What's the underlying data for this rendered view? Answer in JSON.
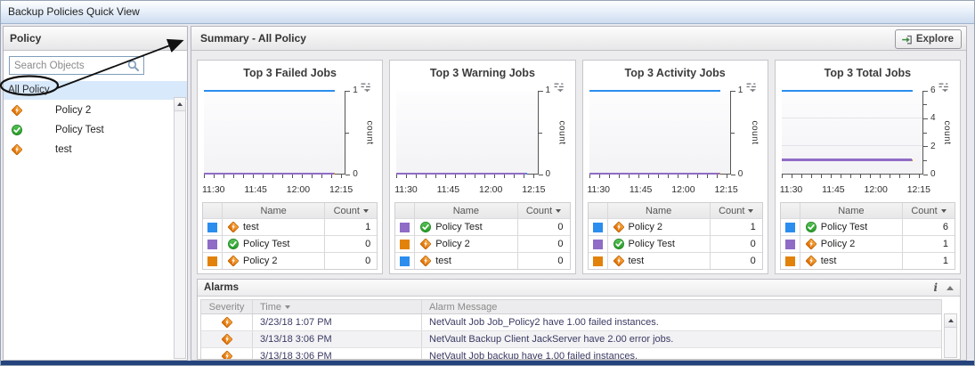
{
  "window": {
    "title": "Backup Policies Quick View"
  },
  "colors": {
    "series_blue": "#2b8dee",
    "series_purple": "#8f6cc6",
    "series_orange": "#e2820a",
    "selected_row_bg": "#d8e9fb",
    "bottom_bar": "#24437c"
  },
  "sidebar": {
    "header": "Policy",
    "search_placeholder": "Search Objects",
    "selected_item": "All Policy",
    "items": [
      {
        "label": "Policy 2",
        "icon": "warning-diamond"
      },
      {
        "label": "Policy Test",
        "icon": "ok-check"
      },
      {
        "label": "test",
        "icon": "warning-diamond"
      }
    ]
  },
  "main": {
    "header": "Summary - All Policy",
    "explore_label": "Explore"
  },
  "panels": [
    {
      "title": "Top 3 Failed Jobs",
      "columns": {
        "name": "Name",
        "count": "Count"
      },
      "rows": [
        {
          "swatch": "#2b8dee",
          "icon": "warning-diamond",
          "name": "test",
          "count": "1"
        },
        {
          "swatch": "#8f6cc6",
          "icon": "ok-check",
          "name": "Policy Test",
          "count": "0"
        },
        {
          "swatch": "#e2820a",
          "icon": "warning-diamond",
          "name": "Policy 2",
          "count": "0"
        }
      ]
    },
    {
      "title": "Top 3 Warning Jobs",
      "columns": {
        "name": "Name",
        "count": "Count"
      },
      "rows": [
        {
          "swatch": "#8f6cc6",
          "icon": "ok-check",
          "name": "Policy Test",
          "count": "0"
        },
        {
          "swatch": "#e2820a",
          "icon": "warning-diamond",
          "name": "Policy 2",
          "count": "0"
        },
        {
          "swatch": "#2b8dee",
          "icon": "warning-diamond",
          "name": "test",
          "count": "0"
        }
      ]
    },
    {
      "title": "Top 3 Activity Jobs",
      "columns": {
        "name": "Name",
        "count": "Count"
      },
      "rows": [
        {
          "swatch": "#2b8dee",
          "icon": "warning-diamond",
          "name": "Policy 2",
          "count": "1"
        },
        {
          "swatch": "#8f6cc6",
          "icon": "ok-check",
          "name": "Policy Test",
          "count": "0"
        },
        {
          "swatch": "#e2820a",
          "icon": "warning-diamond",
          "name": "test",
          "count": "0"
        }
      ]
    },
    {
      "title": "Top 3 Total Jobs",
      "columns": {
        "name": "Name",
        "count": "Count"
      },
      "rows": [
        {
          "swatch": "#2b8dee",
          "icon": "ok-check",
          "name": "Policy Test",
          "count": "6"
        },
        {
          "swatch": "#8f6cc6",
          "icon": "warning-diamond",
          "name": "Policy 2",
          "count": "1"
        },
        {
          "swatch": "#e2820a",
          "icon": "warning-diamond",
          "name": "test",
          "count": "1"
        }
      ]
    }
  ],
  "chart_data": [
    {
      "type": "line",
      "title": "Top 3 Failed Jobs",
      "xlabel": "",
      "ylabel": "count",
      "ylim": [
        0,
        1
      ],
      "x_ticks": [
        "11:30",
        "11:45",
        "12:00",
        "12:15"
      ],
      "y_ticks": [
        0,
        1
      ],
      "y_minor_ticks": [
        0.5
      ],
      "gridlines": [],
      "series": [
        {
          "name": "test",
          "color": "#2b8dee",
          "values": [
            1,
            1,
            1,
            1
          ]
        },
        {
          "name": "Policy Test",
          "color": "#8f6cc6",
          "values": [
            0,
            0,
            0,
            0
          ]
        },
        {
          "name": "Policy 2",
          "color": "#e2820a",
          "values": [
            0,
            0,
            0,
            0
          ]
        }
      ]
    },
    {
      "type": "line",
      "title": "Top 3 Warning Jobs",
      "xlabel": "",
      "ylabel": "count",
      "ylim": [
        0,
        1
      ],
      "x_ticks": [
        "11:30",
        "11:45",
        "12:00",
        "12:15"
      ],
      "y_ticks": [
        0,
        1
      ],
      "y_minor_ticks": [
        0.5
      ],
      "gridlines": [],
      "series": [
        {
          "name": "Policy Test",
          "color": "#8f6cc6",
          "values": [
            0,
            0,
            0,
            0
          ]
        },
        {
          "name": "Policy 2",
          "color": "#e2820a",
          "values": [
            0,
            0,
            0,
            0
          ]
        },
        {
          "name": "test",
          "color": "#2b8dee",
          "values": [
            0,
            0,
            0,
            0
          ]
        }
      ]
    },
    {
      "type": "line",
      "title": "Top 3 Activity Jobs",
      "xlabel": "",
      "ylabel": "count",
      "ylim": [
        0,
        1
      ],
      "x_ticks": [
        "11:30",
        "11:45",
        "12:00",
        "12:15"
      ],
      "y_ticks": [
        0,
        1
      ],
      "y_minor_ticks": [
        0.5
      ],
      "gridlines": [],
      "series": [
        {
          "name": "Policy 2",
          "color": "#2b8dee",
          "values": [
            1,
            1,
            1,
            1
          ]
        },
        {
          "name": "Policy Test",
          "color": "#8f6cc6",
          "values": [
            0,
            0,
            0,
            0
          ]
        },
        {
          "name": "test",
          "color": "#e2820a",
          "values": [
            0,
            0,
            0,
            0
          ]
        }
      ]
    },
    {
      "type": "line",
      "title": "Top 3 Total Jobs",
      "xlabel": "",
      "ylabel": "count",
      "ylim": [
        0,
        6
      ],
      "x_ticks": [
        "11:30",
        "11:45",
        "12:00",
        "12:15"
      ],
      "y_ticks": [
        0,
        2,
        4,
        6
      ],
      "y_minor_ticks": [
        1,
        3,
        5
      ],
      "gridlines": [
        2,
        4
      ],
      "series": [
        {
          "name": "Policy Test",
          "color": "#2b8dee",
          "values": [
            6,
            6,
            6,
            6
          ]
        },
        {
          "name": "Policy 2",
          "color": "#8f6cc6",
          "values": [
            1,
            1,
            1,
            1
          ],
          "thick": true
        },
        {
          "name": "test",
          "color": "#e2820a",
          "values": [
            1,
            1,
            1,
            1
          ]
        }
      ]
    }
  ],
  "alarms": {
    "title": "Alarms",
    "info_glyph": "i",
    "columns": {
      "severity": "Severity",
      "time": "Time",
      "message": "Alarm Message"
    },
    "rows": [
      {
        "severity_icon": "warning-diamond",
        "time": "3/23/18 1:07 PM",
        "message": "NetVault Job Job_Policy2 have 1.00 failed instances."
      },
      {
        "severity_icon": "warning-diamond",
        "time": "3/13/18 3:06 PM",
        "message": "NetVault Backup Client JackServer have 2.00 error jobs."
      },
      {
        "severity_icon": "warning-diamond",
        "time": "3/13/18 3:06 PM",
        "message": "NetVault Job backup have 1.00 failed instances."
      }
    ]
  }
}
